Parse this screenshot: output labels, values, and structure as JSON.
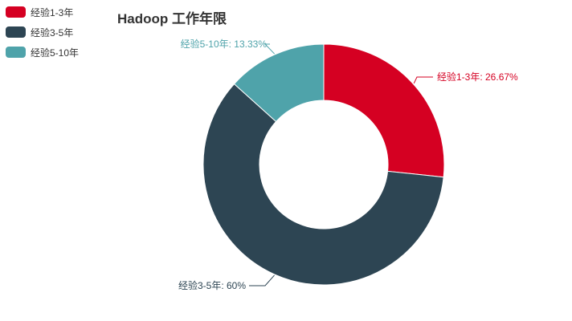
{
  "chart_data": {
    "type": "pie",
    "variant": "donut",
    "title": "Hadoop 工作年限",
    "legend_position": "top-left",
    "slices": [
      {
        "name": "经验1-3年",
        "value": 26.67,
        "label": "经验1-3年: 26.67%",
        "color": "#d50022"
      },
      {
        "name": "经验3-5年",
        "value": 60,
        "label": "经验3-5年: 60%",
        "color": "#2d4553"
      },
      {
        "name": "经验5-10年",
        "value": 13.33,
        "label": "经验5-10年: 13.33%",
        "color": "#4fa3aa"
      }
    ]
  }
}
